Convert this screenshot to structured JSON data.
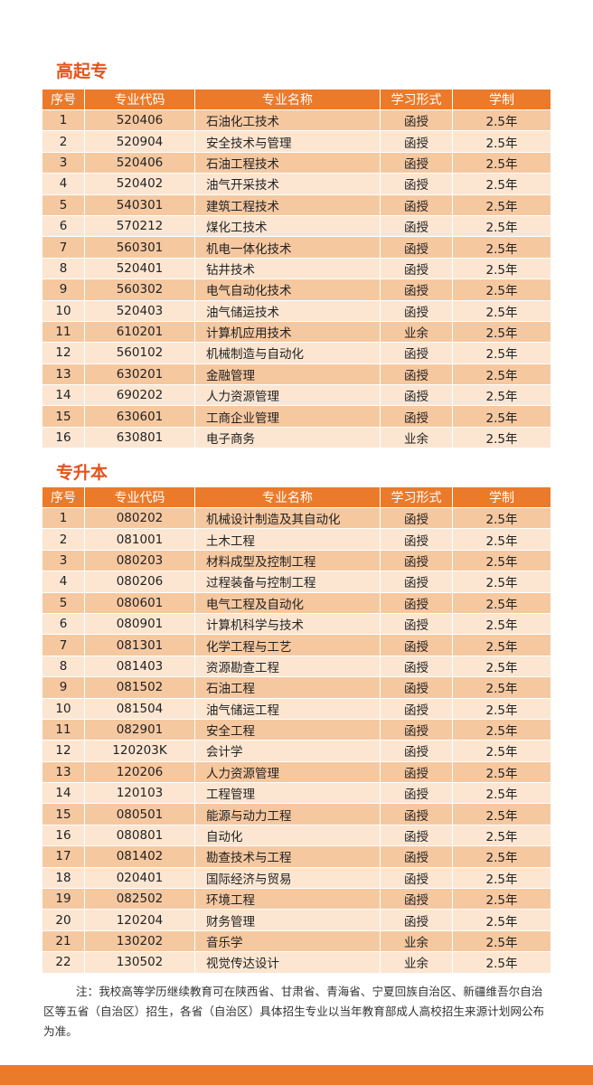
{
  "sections": [
    {
      "title": "高起专",
      "header": [
        "序号",
        "专业代码",
        "专业名称",
        "学习形式",
        "学制"
      ],
      "rows": [
        [
          "1",
          "520406",
          "石油化工技术",
          "函授",
          "2.5年"
        ],
        [
          "2",
          "520904",
          "安全技术与管理",
          "函授",
          "2.5年"
        ],
        [
          "3",
          "520406",
          "石油工程技术",
          "函授",
          "2.5年"
        ],
        [
          "4",
          "520402",
          "油气开采技术",
          "函授",
          "2.5年"
        ],
        [
          "5",
          "540301",
          "建筑工程技术",
          "函授",
          "2.5年"
        ],
        [
          "6",
          "570212",
          "煤化工技术",
          "函授",
          "2.5年"
        ],
        [
          "7",
          "560301",
          "机电一体化技术",
          "函授",
          "2.5年"
        ],
        [
          "8",
          "520401",
          "钻井技术",
          "函授",
          "2.5年"
        ],
        [
          "9",
          "560302",
          "电气自动化技术",
          "函授",
          "2.5年"
        ],
        [
          "10",
          "520403",
          "油气储运技术",
          "函授",
          "2.5年"
        ],
        [
          "11",
          "610201",
          "计算机应用技术",
          "业余",
          "2.5年"
        ],
        [
          "12",
          "560102",
          "机械制造与自动化",
          "函授",
          "2.5年"
        ],
        [
          "13",
          "630201",
          "金融管理",
          "函授",
          "2.5年"
        ],
        [
          "14",
          "690202",
          "人力资源管理",
          "函授",
          "2.5年"
        ],
        [
          "15",
          "630601",
          "工商企业管理",
          "函授",
          "2.5年"
        ],
        [
          "16",
          "630801",
          "电子商务",
          "业余",
          "2.5年"
        ]
      ]
    },
    {
      "title": "专升本",
      "header": [
        "序号",
        "专业代码",
        "专业名称",
        "学习形式",
        "学制"
      ],
      "rows": [
        [
          "1",
          "080202",
          "机械设计制造及其自动化",
          "函授",
          "2.5年"
        ],
        [
          "2",
          "081001",
          "土木工程",
          "函授",
          "2.5年"
        ],
        [
          "3",
          "080203",
          "材料成型及控制工程",
          "函授",
          "2.5年"
        ],
        [
          "4",
          "080206",
          "过程装备与控制工程",
          "函授",
          "2.5年"
        ],
        [
          "5",
          "080601",
          "电气工程及自动化",
          "函授",
          "2.5年"
        ],
        [
          "6",
          "080901",
          "计算机科学与技术",
          "函授",
          "2.5年"
        ],
        [
          "7",
          "081301",
          "化学工程与工艺",
          "函授",
          "2.5年"
        ],
        [
          "8",
          "081403",
          "资源勘查工程",
          "函授",
          "2.5年"
        ],
        [
          "9",
          "081502",
          "石油工程",
          "函授",
          "2.5年"
        ],
        [
          "10",
          "081504",
          "油气储运工程",
          "函授",
          "2.5年"
        ],
        [
          "11",
          "082901",
          "安全工程",
          "函授",
          "2.5年"
        ],
        [
          "12",
          "120203K",
          "会计学",
          "函授",
          "2.5年"
        ],
        [
          "13",
          "120206",
          "人力资源管理",
          "函授",
          "2.5年"
        ],
        [
          "14",
          "120103",
          "工程管理",
          "函授",
          "2.5年"
        ],
        [
          "15",
          "080501",
          "能源与动力工程",
          "函授",
          "2.5年"
        ],
        [
          "16",
          "080801",
          "自动化",
          "函授",
          "2.5年"
        ],
        [
          "17",
          "081402",
          "勘查技术与工程",
          "函授",
          "2.5年"
        ],
        [
          "18",
          "020401",
          "国际经济与贸易",
          "函授",
          "2.5年"
        ],
        [
          "19",
          "082502",
          "环境工程",
          "函授",
          "2.5年"
        ],
        [
          "20",
          "120204",
          "财务管理",
          "函授",
          "2.5年"
        ],
        [
          "21",
          "130202",
          "音乐学",
          "业余",
          "2.5年"
        ],
        [
          "22",
          "130502",
          "视觉传达设计",
          "业余",
          "2.5年"
        ]
      ]
    }
  ],
  "note": "注：我校高等学历继续教育可在陕西省、甘肃省、青海省、宁夏回族自治区、新疆维吾尔自治区等五省（自治区）招生，各省（自治区）具体招生专业以当年教育部成人高校招生来源计划网公布为准。"
}
